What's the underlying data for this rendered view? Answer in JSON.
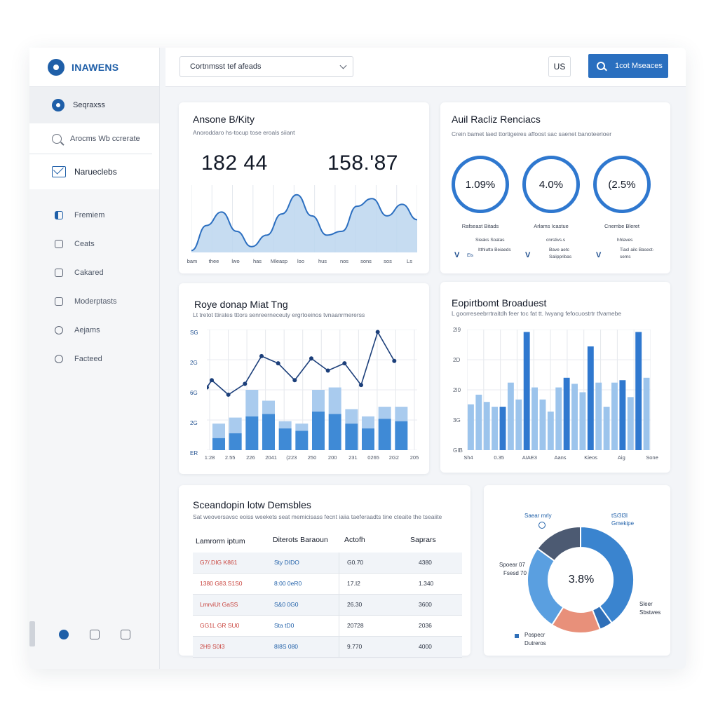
{
  "brand": {
    "name": "INAWENS"
  },
  "sidebar": {
    "top_item": "Seqraxss",
    "search_placeholder": "Arocms Wb ccrerate",
    "section": "Narueclebs",
    "nav": [
      "Fremiem",
      "Ceats",
      "Cakared",
      "Moderptasts",
      "Aejams",
      "Facteed"
    ]
  },
  "topbar": {
    "select_value": "Cortnmsst tef afeads",
    "region": "US",
    "cta_label": "1cot Mseaces"
  },
  "activity": {
    "title": "Ansone B/Kity",
    "subtitle": "Anoroddaro hs-tocup tose eroals siiant",
    "metric1": "182 44",
    "metric2": "158.'87",
    "x_labels": [
      "bam",
      "thee",
      "lwo",
      "has",
      "Mleasp",
      "loo",
      "hus",
      "nos",
      "sons",
      "sos",
      "Ls"
    ],
    "values": [
      2,
      28,
      42,
      22,
      6,
      18,
      40,
      60,
      38,
      18,
      22,
      48,
      56,
      38,
      50,
      34
    ]
  },
  "rings": {
    "title": "Auil Racliz Renciacs",
    "subtitle": "Crein bamet laed ttortigeires affoost sac saenet banoteerioer",
    "items": [
      {
        "value": "1.09%",
        "percent": 100,
        "label": "Rafseast Bitads",
        "note1": "Sieaks Soatas",
        "note2": "Itthlutto Beiaeds",
        "mark": "V",
        "mark2": "Els"
      },
      {
        "value": "4.0%",
        "percent": 100,
        "label": "Arlams Icastue",
        "note1": "cnrstivs.s",
        "note2": "Bave aetc Salippribas",
        "mark": "V",
        "mark2": ""
      },
      {
        "value": "(2.5%",
        "percent": 100,
        "label": "Cnembe Bleret",
        "note1": "hhlaves",
        "note2": "Tiacl ailc Basect-sems",
        "mark": "V",
        "mark2": ""
      }
    ]
  },
  "combo": {
    "title": "Roye donap Miat Tng",
    "subtitle": "Lt tretot ttirates tttors senreerneceuty ergrtoeinos tvnaanrmererss",
    "y_labels": [
      "SG",
      "2G",
      "6G",
      "2G",
      "ER"
    ],
    "x_labels": [
      "1:28",
      "2.55",
      "226",
      "2041",
      "(223",
      "250",
      "200",
      "231",
      "0265",
      "2G2",
      "205"
    ],
    "bars_total": [
      22,
      27,
      50,
      41,
      24,
      22,
      50,
      52,
      34,
      28,
      36,
      36
    ],
    "bars_lower": [
      10,
      14,
      28,
      30,
      18,
      16,
      32,
      30,
      22,
      18,
      26,
      24
    ],
    "line": [
      58,
      46,
      55,
      78,
      72,
      58,
      76,
      66,
      72,
      54,
      98,
      74
    ]
  },
  "equipment": {
    "title": "Eopirtbomt Broaduest",
    "subtitle": "L goorreseebrrtraitdh feer toc fat tt. lwyang fefocuostrtr tfvamebe",
    "y_labels": [
      "2I9",
      "2D",
      "2I0",
      "3G",
      "GIB"
    ],
    "x_labels": [
      "Sh4",
      "0.35",
      "AIAE3",
      "Aans",
      "Kieos",
      "Aig",
      "Sone"
    ],
    "values": [
      38,
      46,
      40,
      36,
      36,
      56,
      42,
      98,
      52,
      42,
      32,
      52,
      60,
      55,
      48,
      86,
      56,
      36,
      56,
      58,
      44,
      98,
      60
    ],
    "highlight": [
      0,
      0,
      0,
      0,
      1,
      0,
      0,
      1,
      0,
      0,
      0,
      0,
      1,
      0,
      0,
      1,
      0,
      0,
      0,
      1,
      0,
      1,
      0
    ]
  },
  "table": {
    "title": "Sceandopin lotw Demsbles",
    "subtitle": "Sat weoversavsc eoiss weekets seat memicisass fecnt iaiia taeferaadts tine cteaite the tseaiite",
    "headers": [
      "Lamrorm iptum",
      "Diterots Baraoun",
      "Actofh",
      "Saprars"
    ],
    "rows": [
      [
        "G7/.DIG K861",
        "Sty DIDO",
        "G0.70",
        "4380"
      ],
      [
        "1380 G83.S1S0",
        "8:00 0eR0",
        "17.I2",
        "1.340"
      ],
      [
        "LmrviUt GaSS",
        "S&0 0G0",
        "26.30",
        "3600"
      ],
      [
        "GG1L GR SU0",
        "Sta tD0",
        "20728",
        "2036"
      ],
      [
        "2H9 S0I3",
        "8I8S 080",
        "9.770",
        "4000"
      ]
    ]
  },
  "donut": {
    "center": "3.8%",
    "labels": {
      "top_left": "Saear mrly",
      "top_right1": "tS/3I3I",
      "top_right2": "Gmekipe",
      "left1": "Spoear 07",
      "left2": "Fsesd 70",
      "right1": "Sleer",
      "right2": "Sbstwes",
      "bottom1": "Pospecr",
      "bottom2": "Dutreros"
    },
    "slices": [
      {
        "value": 40,
        "color": "#3a84cf"
      },
      {
        "value": 4,
        "color": "#2f6fb8"
      },
      {
        "value": 15,
        "color": "#e8907a"
      },
      {
        "value": 26,
        "color": "#5a9fe0"
      },
      {
        "value": 15,
        "color": "#4c5a72"
      }
    ]
  }
}
